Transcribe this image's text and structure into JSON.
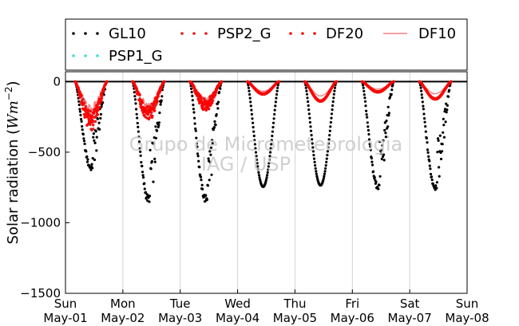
{
  "chart_data": {
    "type": "scatter",
    "ylabel": "Solar radiation (W m^-2)",
    "ylabel_prefix": "Solar radiation (",
    "ylabel_unit": "Wm",
    "ylabel_exp": "−2",
    "ylabel_suffix": ")",
    "watermark": [
      "Grupo de Micrometeorologia",
      "IAG / USP"
    ],
    "ylim": [
      -1500,
      70
    ],
    "yticks": [
      0,
      -500,
      -1000,
      -1500
    ],
    "ytick_labels": [
      "0",
      "−500",
      "−1000",
      "−1500"
    ],
    "grid": "vertical",
    "legend": "top (above plot, outside)",
    "xlim_days": [
      0,
      7
    ],
    "xticks": [
      {
        "day": 0,
        "l1": "Sun",
        "l2": "May-01"
      },
      {
        "day": 1,
        "l1": "Mon",
        "l2": "May-02"
      },
      {
        "day": 2,
        "l1": "Tue",
        "l2": "May-03"
      },
      {
        "day": 3,
        "l1": "Wed",
        "l2": "May-04"
      },
      {
        "day": 4,
        "l1": "Thu",
        "l2": "May-05"
      },
      {
        "day": 5,
        "l1": "Fri",
        "l2": "May-06"
      },
      {
        "day": 6,
        "l1": "Sat",
        "l2": "May-07"
      },
      {
        "day": 7,
        "l1": "Sun",
        "l2": "May-08"
      }
    ],
    "series": [
      {
        "name": "GL10",
        "color": "#000000",
        "marker": "dot",
        "daily_min": [
          -630,
          -860,
          -860,
          -745,
          -735,
          -770,
          -770
        ]
      },
      {
        "name": "PSP2_G",
        "color": "#e41a1c",
        "marker": "dot",
        "daily_min": [
          -350,
          -280,
          -200,
          -85,
          -135,
          -70,
          -120
        ]
      },
      {
        "name": "DF20",
        "color": "#ff0000",
        "marker": "dot",
        "daily_min": [
          -340,
          -280,
          -210,
          -90,
          -140,
          -75,
          -125
        ]
      },
      {
        "name": "DF10",
        "color": "#f08080",
        "marker": "line",
        "daily_min": [
          -240,
          -210,
          -160,
          -70,
          -105,
          -55,
          -90
        ]
      },
      {
        "name": "PSP1_G",
        "color": "#40e0d0",
        "marker": "dot",
        "daily_min": []
      }
    ]
  }
}
